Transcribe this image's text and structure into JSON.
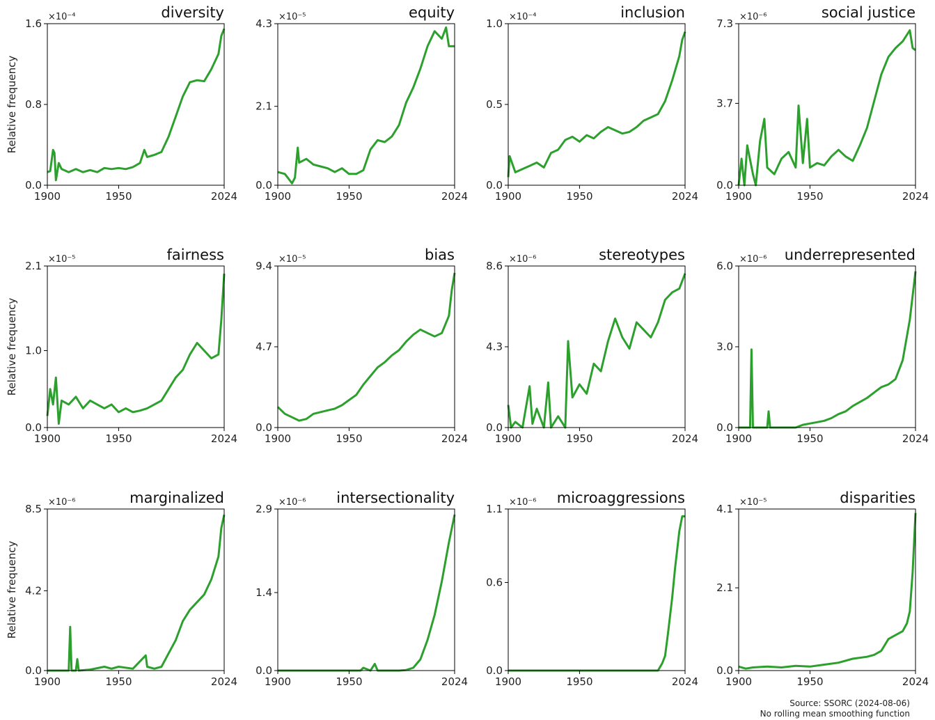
{
  "figure": {
    "source_line1": "Source: SSORC (2024-08-06)",
    "source_line2": "No rolling mean smoothing function",
    "ylabel": "Relative frequency",
    "line_color": "#2ca02c"
  },
  "chart_data": [
    {
      "type": "line",
      "title": "diversity",
      "scale_label": "×10⁻⁴",
      "ylabel": "Relative frequency",
      "x_ticks": [
        "1900",
        "1950",
        "2024"
      ],
      "y_ticks": [
        "0.0",
        "0.8",
        "1.6"
      ],
      "xlim": [
        1900,
        2024
      ],
      "ylim": [
        0,
        1.6
      ],
      "series": [
        {
          "x": [
            1900,
            1902,
            1904,
            1905,
            1906,
            1908,
            1910,
            1915,
            1920,
            1925,
            1930,
            1935,
            1940,
            1945,
            1950,
            1955,
            1960,
            1965,
            1968,
            1970,
            1975,
            1980,
            1985,
            1990,
            1995,
            2000,
            2005,
            2010,
            2015,
            2020,
            2022,
            2024
          ],
          "y": [
            0.13,
            0.14,
            0.35,
            0.32,
            0.05,
            0.22,
            0.16,
            0.13,
            0.16,
            0.13,
            0.15,
            0.13,
            0.17,
            0.16,
            0.17,
            0.16,
            0.18,
            0.22,
            0.35,
            0.28,
            0.3,
            0.33,
            0.48,
            0.68,
            0.88,
            1.02,
            1.04,
            1.03,
            1.15,
            1.3,
            1.48,
            1.55
          ]
        }
      ]
    },
    {
      "type": "line",
      "title": "equity",
      "scale_label": "×10⁻⁵",
      "ylabel": "",
      "x_ticks": [
        "1900",
        "1950",
        "2024"
      ],
      "y_ticks": [
        "0.0",
        "2.1",
        "4.3"
      ],
      "xlim": [
        1900,
        2024
      ],
      "ylim": [
        0,
        4.3
      ],
      "series": [
        {
          "x": [
            1900,
            1905,
            1908,
            1910,
            1912,
            1914,
            1915,
            1920,
            1925,
            1930,
            1935,
            1940,
            1945,
            1950,
            1955,
            1960,
            1965,
            1970,
            1975,
            1980,
            1985,
            1990,
            1995,
            2000,
            2005,
            2010,
            2015,
            2018,
            2020,
            2022,
            2024
          ],
          "y": [
            0.35,
            0.3,
            0.15,
            0.05,
            0.2,
            1.0,
            0.6,
            0.7,
            0.55,
            0.5,
            0.45,
            0.35,
            0.45,
            0.3,
            0.3,
            0.4,
            0.95,
            1.2,
            1.15,
            1.3,
            1.6,
            2.2,
            2.6,
            3.1,
            3.7,
            4.1,
            3.9,
            4.2,
            3.7,
            3.7,
            3.7
          ]
        }
      ]
    },
    {
      "type": "line",
      "title": "inclusion",
      "scale_label": "×10⁻⁴",
      "ylabel": "",
      "x_ticks": [
        "1900",
        "1950",
        "2024"
      ],
      "y_ticks": [
        "0.0",
        "0.5",
        "1.0"
      ],
      "xlim": [
        1900,
        2024
      ],
      "ylim": [
        0,
        1.0
      ],
      "series": [
        {
          "x": [
            1900,
            1901,
            1905,
            1910,
            1915,
            1920,
            1925,
            1930,
            1935,
            1940,
            1945,
            1950,
            1955,
            1960,
            1965,
            1970,
            1975,
            1980,
            1985,
            1990,
            1995,
            2000,
            2005,
            2010,
            2015,
            2020,
            2022,
            2024
          ],
          "y": [
            0.05,
            0.18,
            0.08,
            0.1,
            0.12,
            0.14,
            0.11,
            0.2,
            0.22,
            0.28,
            0.3,
            0.27,
            0.31,
            0.29,
            0.33,
            0.36,
            0.34,
            0.32,
            0.33,
            0.36,
            0.4,
            0.42,
            0.44,
            0.52,
            0.65,
            0.8,
            0.9,
            0.95
          ]
        }
      ]
    },
    {
      "type": "line",
      "title": "social justice",
      "scale_label": "×10⁻⁶",
      "ylabel": "",
      "x_ticks": [
        "1900",
        "1950",
        "2024"
      ],
      "y_ticks": [
        "0.0",
        "3.7",
        "7.3"
      ],
      "xlim": [
        1900,
        2024
      ],
      "ylim": [
        0,
        7.3
      ],
      "series": [
        {
          "x": [
            1900,
            1902,
            1904,
            1906,
            1910,
            1912,
            1915,
            1918,
            1920,
            1925,
            1930,
            1935,
            1940,
            1942,
            1945,
            1948,
            1950,
            1955,
            1960,
            1965,
            1970,
            1975,
            1980,
            1985,
            1990,
            1995,
            2000,
            2005,
            2010,
            2015,
            2020,
            2022,
            2024
          ],
          "y": [
            0.0,
            1.2,
            0.0,
            1.8,
            0.5,
            0.0,
            2.0,
            3.0,
            0.8,
            0.5,
            1.2,
            1.5,
            0.8,
            3.6,
            1.0,
            3.0,
            0.8,
            1.0,
            0.9,
            1.3,
            1.6,
            1.3,
            1.1,
            1.8,
            2.6,
            3.8,
            5.0,
            5.8,
            6.2,
            6.5,
            7.0,
            6.2,
            6.1
          ]
        }
      ]
    },
    {
      "type": "line",
      "title": "fairness",
      "scale_label": "×10⁻⁵",
      "ylabel": "Relative frequency",
      "x_ticks": [
        "1900",
        "1950",
        "2024"
      ],
      "y_ticks": [
        "0.0",
        "1.0",
        "2.1"
      ],
      "xlim": [
        1900,
        2024
      ],
      "ylim": [
        0,
        2.1
      ],
      "series": [
        {
          "x": [
            1900,
            1902,
            1904,
            1906,
            1908,
            1910,
            1915,
            1920,
            1925,
            1930,
            1935,
            1940,
            1945,
            1950,
            1955,
            1960,
            1965,
            1970,
            1975,
            1980,
            1985,
            1990,
            1995,
            2000,
            2005,
            2010,
            2015,
            2020,
            2022,
            2024
          ],
          "y": [
            0.15,
            0.5,
            0.3,
            0.65,
            0.05,
            0.35,
            0.3,
            0.4,
            0.25,
            0.35,
            0.3,
            0.25,
            0.3,
            0.2,
            0.25,
            0.2,
            0.22,
            0.25,
            0.3,
            0.35,
            0.5,
            0.65,
            0.75,
            0.95,
            1.1,
            1.0,
            0.9,
            0.95,
            1.4,
            2.0
          ]
        }
      ]
    },
    {
      "type": "line",
      "title": "bias",
      "scale_label": "×10⁻⁵",
      "ylabel": "",
      "x_ticks": [
        "1900",
        "1950",
        "2024"
      ],
      "y_ticks": [
        "0.0",
        "4.7",
        "9.4"
      ],
      "xlim": [
        1900,
        2024
      ],
      "ylim": [
        0,
        9.4
      ],
      "series": [
        {
          "x": [
            1900,
            1905,
            1910,
            1915,
            1920,
            1925,
            1930,
            1935,
            1940,
            1945,
            1950,
            1955,
            1960,
            1965,
            1970,
            1975,
            1980,
            1985,
            1990,
            1995,
            2000,
            2005,
            2010,
            2015,
            2020,
            2022,
            2024
          ],
          "y": [
            1.2,
            0.8,
            0.6,
            0.4,
            0.5,
            0.8,
            0.9,
            1.0,
            1.1,
            1.3,
            1.6,
            1.9,
            2.5,
            3.0,
            3.5,
            3.8,
            4.2,
            4.5,
            5.0,
            5.4,
            5.7,
            5.5,
            5.3,
            5.5,
            6.5,
            8.0,
            9.0
          ]
        }
      ]
    },
    {
      "type": "line",
      "title": "stereotypes",
      "scale_label": "×10⁻⁶",
      "ylabel": "",
      "x_ticks": [
        "1900",
        "1950",
        "2024"
      ],
      "y_ticks": [
        "0.0",
        "4.3",
        "8.6"
      ],
      "xlim": [
        1900,
        2024
      ],
      "ylim": [
        0,
        8.6
      ],
      "series": [
        {
          "x": [
            1900,
            1902,
            1905,
            1910,
            1915,
            1917,
            1920,
            1925,
            1928,
            1930,
            1935,
            1940,
            1942,
            1945,
            1950,
            1955,
            1960,
            1965,
            1970,
            1975,
            1980,
            1985,
            1990,
            1995,
            2000,
            2005,
            2010,
            2015,
            2020,
            2024
          ],
          "y": [
            1.2,
            0.0,
            0.3,
            0.0,
            2.2,
            0.2,
            1.0,
            0.0,
            2.4,
            0.0,
            0.6,
            0.0,
            4.6,
            1.6,
            2.3,
            1.8,
            3.4,
            3.0,
            4.6,
            5.8,
            4.8,
            4.2,
            5.6,
            5.2,
            4.8,
            5.6,
            6.8,
            7.2,
            7.4,
            8.2
          ]
        }
      ]
    },
    {
      "type": "line",
      "title": "underrepresented",
      "scale_label": "×10⁻⁶",
      "ylabel": "",
      "x_ticks": [
        "1900",
        "1950",
        "2024"
      ],
      "y_ticks": [
        "0.0",
        "3.0",
        "6.0"
      ],
      "xlim": [
        1900,
        2024
      ],
      "ylim": [
        0,
        6.0
      ],
      "series": [
        {
          "x": [
            1900,
            1905,
            1908,
            1909,
            1910,
            1915,
            1920,
            1921,
            1922,
            1930,
            1940,
            1945,
            1950,
            1955,
            1960,
            1965,
            1970,
            1975,
            1980,
            1985,
            1990,
            1995,
            2000,
            2005,
            2010,
            2015,
            2020,
            2024
          ],
          "y": [
            0.0,
            0.0,
            0.0,
            2.9,
            0.0,
            0.0,
            0.0,
            0.6,
            0.0,
            0.0,
            0.0,
            0.1,
            0.15,
            0.2,
            0.25,
            0.35,
            0.5,
            0.6,
            0.8,
            0.95,
            1.1,
            1.3,
            1.5,
            1.6,
            1.8,
            2.5,
            4.0,
            5.8
          ]
        }
      ]
    },
    {
      "type": "line",
      "title": "marginalized",
      "scale_label": "×10⁻⁶",
      "ylabel": "Relative frequency",
      "x_ticks": [
        "1900",
        "1950",
        "2024"
      ],
      "y_ticks": [
        "0.0",
        "4.2",
        "8.5"
      ],
      "xlim": [
        1900,
        2024
      ],
      "ylim": [
        0,
        8.5
      ],
      "series": [
        {
          "x": [
            1900,
            1910,
            1915,
            1916,
            1917,
            1920,
            1921,
            1922,
            1930,
            1940,
            1945,
            1950,
            1960,
            1969,
            1970,
            1975,
            1980,
            1985,
            1990,
            1995,
            2000,
            2005,
            2010,
            2015,
            2020,
            2022,
            2024
          ],
          "y": [
            0.0,
            0.0,
            0.0,
            2.3,
            0.0,
            0.0,
            0.6,
            0.0,
            0.05,
            0.2,
            0.1,
            0.2,
            0.1,
            0.8,
            0.2,
            0.1,
            0.2,
            0.9,
            1.6,
            2.6,
            3.2,
            3.6,
            4.0,
            4.8,
            6.0,
            7.5,
            8.2
          ]
        }
      ]
    },
    {
      "type": "line",
      "title": "intersectionality",
      "scale_label": "×10⁻⁶",
      "ylabel": "",
      "x_ticks": [
        "1900",
        "1950",
        "2024"
      ],
      "y_ticks": [
        "0.0",
        "1.4",
        "2.9"
      ],
      "xlim": [
        1900,
        2024
      ],
      "ylim": [
        0,
        2.9
      ],
      "series": [
        {
          "x": [
            1900,
            1950,
            1958,
            1960,
            1965,
            1968,
            1970,
            1980,
            1985,
            1990,
            1995,
            2000,
            2005,
            2010,
            2015,
            2020,
            2024
          ],
          "y": [
            0.0,
            0.0,
            0.0,
            0.05,
            0.0,
            0.12,
            0.0,
            0.0,
            0.0,
            0.01,
            0.05,
            0.2,
            0.55,
            1.0,
            1.6,
            2.3,
            2.8
          ]
        }
      ]
    },
    {
      "type": "line",
      "title": "microaggressions",
      "scale_label": "×10⁻⁶",
      "ylabel": "",
      "x_ticks": [
        "1900",
        "1950",
        "2024"
      ],
      "y_ticks": [
        "0.0",
        "0.6",
        "1.1"
      ],
      "xlim": [
        1900,
        2024
      ],
      "ylim": [
        0,
        1.1
      ],
      "series": [
        {
          "x": [
            1900,
            1990,
            2005,
            2008,
            2010,
            2012,
            2015,
            2017,
            2020,
            2022,
            2024
          ],
          "y": [
            0.0,
            0.0,
            0.0,
            0.05,
            0.1,
            0.25,
            0.5,
            0.7,
            0.95,
            1.05,
            1.05
          ]
        }
      ]
    },
    {
      "type": "line",
      "title": "disparities",
      "scale_label": "×10⁻⁵",
      "ylabel": "",
      "x_ticks": [
        "1900",
        "1950",
        "2024"
      ],
      "y_ticks": [
        "0.0",
        "2.1",
        "4.1"
      ],
      "xlim": [
        1900,
        2024
      ],
      "ylim": [
        0,
        4.1
      ],
      "series": [
        {
          "x": [
            1900,
            1905,
            1910,
            1920,
            1930,
            1940,
            1950,
            1960,
            1970,
            1980,
            1990,
            1995,
            2000,
            2005,
            2010,
            2015,
            2018,
            2020,
            2022,
            2024
          ],
          "y": [
            0.1,
            0.05,
            0.08,
            0.1,
            0.08,
            0.12,
            0.1,
            0.15,
            0.2,
            0.3,
            0.35,
            0.4,
            0.5,
            0.8,
            0.9,
            1.0,
            1.2,
            1.5,
            2.5,
            4.0
          ]
        }
      ]
    }
  ]
}
